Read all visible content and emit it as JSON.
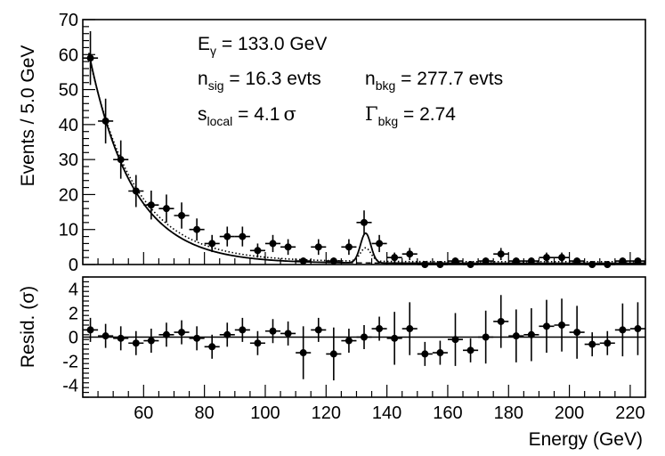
{
  "chart_data": [
    {
      "type": "scatter",
      "panel": "main",
      "xlabel": "Energy (GeV)",
      "ylabel": "Events / 5.0 GeV",
      "xlim": [
        40,
        225
      ],
      "ylim": [
        0,
        70
      ],
      "yticks": [
        0,
        10,
        20,
        30,
        40,
        50,
        60,
        70
      ],
      "xticks": [
        60,
        80,
        100,
        120,
        140,
        160,
        180,
        200,
        220
      ],
      "bin_width": 5.0,
      "annotations": {
        "energy_label": "E",
        "energy_sub": "γ",
        "energy_value": " = 133.0 GeV",
        "nsig_label": "n",
        "nsig_sub": "sig",
        "nsig_value": " = 16.3 evts",
        "nbkg_label": "n",
        "nbkg_sub": "bkg",
        "nbkg_value": " = 277.7 evts",
        "slocal_label": "s",
        "slocal_sub": "local",
        "slocal_value": " = 4.1",
        "sigma_symbol": "σ",
        "gamma_label": "Γ",
        "gamma_sub": "bkg",
        "gamma_value": " = 2.74"
      },
      "series": [
        {
          "name": "data",
          "x": [
            42.5,
            47.5,
            52.5,
            57.5,
            62.5,
            67.5,
            72.5,
            77.5,
            82.5,
            87.5,
            92.5,
            97.5,
            102.5,
            107.5,
            112.5,
            117.5,
            122.5,
            127.5,
            132.5,
            137.5,
            142.5,
            147.5,
            152.5,
            157.5,
            162.5,
            167.5,
            172.5,
            177.5,
            182.5,
            187.5,
            192.5,
            197.5,
            202.5,
            207.5,
            212.5,
            217.5,
            222.5
          ],
          "y": [
            59,
            41,
            30,
            21,
            17,
            16,
            14,
            10,
            6,
            8,
            8,
            4,
            6,
            5,
            1,
            5,
            1,
            5,
            12,
            6,
            2,
            3,
            0,
            0,
            1,
            0,
            1,
            3,
            1,
            1,
            2,
            2,
            1,
            0,
            0,
            1,
            1
          ]
        },
        {
          "name": "total fit",
          "style": "solid",
          "curve": "background + signal",
          "background_amplitude": 40.9,
          "background_slope": 0.07,
          "background_ref_x": 47.5,
          "background_floor": 0.35,
          "signal_peak_x": 133.0,
          "signal_height": 8.5,
          "signal_sigma": 1.7
        },
        {
          "name": "background only",
          "style": "dashed"
        },
        {
          "name": "alternative fit",
          "style": "dotted",
          "background_slope": 0.066,
          "background_floor": 0.8
        }
      ]
    },
    {
      "type": "scatter",
      "panel": "residual",
      "xlabel": "Energy (GeV)",
      "ylabel": "Resid. (σ)",
      "xlim": [
        40,
        225
      ],
      "ylim": [
        -5,
        5
      ],
      "yticks": [
        -4,
        -2,
        0,
        2,
        4
      ],
      "series": [
        {
          "name": "residuals",
          "x": [
            42.5,
            47.5,
            52.5,
            57.5,
            62.5,
            67.5,
            72.5,
            77.5,
            82.5,
            87.5,
            92.5,
            97.5,
            102.5,
            107.5,
            112.5,
            117.5,
            122.5,
            127.5,
            132.5,
            137.5,
            142.5,
            147.5,
            152.5,
            157.5,
            162.5,
            167.5,
            172.5,
            177.5,
            182.5,
            187.5,
            192.5,
            197.5,
            202.5,
            207.5,
            212.5,
            217.5,
            222.5
          ],
          "y": [
            0.6,
            0.1,
            -0.1,
            -0.5,
            -0.3,
            0.2,
            0.4,
            -0.1,
            -0.8,
            0.2,
            0.6,
            -0.5,
            0.5,
            0.3,
            -1.3,
            0.6,
            -1.4,
            -0.3,
            0.0,
            0.7,
            -0.1,
            0.7,
            -1.4,
            -1.3,
            -0.2,
            -1.1,
            0.0,
            1.3,
            0.1,
            0.2,
            0.9,
            1.0,
            0.4,
            -0.6,
            -0.5,
            0.6,
            0.7
          ]
        }
      ]
    }
  ]
}
